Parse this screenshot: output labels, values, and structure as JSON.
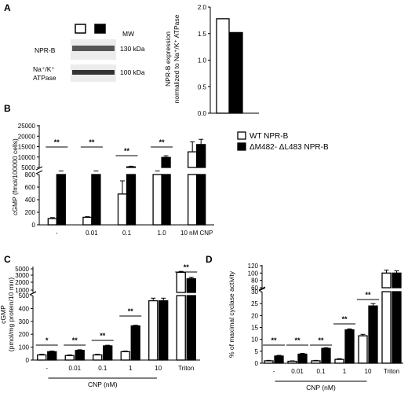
{
  "panel_letters": {
    "a": "A",
    "b": "B",
    "c": "C",
    "d": "D"
  },
  "blot": {
    "mw_label": "MW",
    "rows": [
      {
        "name": "NPR-B",
        "mw": "130 kDa"
      },
      {
        "name": "Na⁺/K⁺\nATPase",
        "mw": "100 kDa"
      }
    ],
    "lane_colors": [
      "#ffffff",
      "#000000"
    ]
  },
  "legend": {
    "entries": [
      {
        "label": "WT NPR-B",
        "color": "#ffffff"
      },
      {
        "label": "ΔM482- ΔL483 NPR-B",
        "color": "#000000"
      }
    ]
  },
  "chart_data": [
    {
      "id": "A",
      "type": "bar",
      "ylabel": "NPR-B expression\nnormalized to Na⁺/K⁺ ATPase",
      "ylim": [
        0,
        2.0
      ],
      "yticks": [
        "0.0",
        "0.5",
        "1.0",
        "1.5",
        "2.0"
      ],
      "categories": [
        "WT NPR-B",
        "ΔM482- ΔL483 NPR-B"
      ],
      "values": [
        1.78,
        1.52
      ],
      "colors": [
        "#ffffff",
        "#000000"
      ]
    },
    {
      "id": "B",
      "type": "bar",
      "ylabel": "cGMP (fmol/100000 cells)",
      "broken_axis": {
        "lower": {
          "ylim": [
            0,
            800
          ],
          "ticks": [
            "0",
            "200",
            "400",
            "600",
            "800"
          ]
        },
        "upper": {
          "ylim": [
            5000,
            25000
          ],
          "ticks": [
            "5000",
            "10000",
            "15000",
            "20000",
            "25000"
          ]
        }
      },
      "categories": [
        "-",
        "0.01",
        "0.1",
        "1.0",
        "10 nM CNP"
      ],
      "series": [
        {
          "name": "WT NPR-B",
          "color": "#ffffff",
          "values": [
            100,
            120,
            490,
            3500,
            12500
          ],
          "errors": [
            15,
            10,
            210,
            300,
            4800
          ]
        },
        {
          "name": "ΔM482- ΔL483 NPR-B",
          "color": "#000000",
          "values": [
            2500,
            3000,
            5300,
            9800,
            16000
          ],
          "errors": [
            200,
            200,
            300,
            800,
            2500
          ]
        }
      ],
      "significance": [
        "**",
        "**",
        "**",
        "**",
        ""
      ]
    },
    {
      "id": "C",
      "type": "bar",
      "ylabel": "cGMP\n(pmol/mg protein/10 min)",
      "xlabel": "CNP (nM)",
      "broken_axis": {
        "lower": {
          "ylim": [
            0,
            500
          ],
          "ticks": [
            "0",
            "100",
            "200",
            "300",
            "400",
            "500"
          ]
        },
        "upper": {
          "ylim": [
            1000,
            5000
          ],
          "ticks": [
            "1000",
            "2000",
            "3000",
            "5000"
          ]
        }
      },
      "categories": [
        "-",
        "0.01",
        "0.1",
        "1",
        "10",
        "Triton"
      ],
      "series": [
        {
          "name": "WT NPR-B",
          "color": "#ffffff",
          "values": [
            40,
            35,
            40,
            65,
            460,
            3900
          ],
          "errors": [
            5,
            5,
            5,
            5,
            20,
            300
          ]
        },
        {
          "name": "ΔM482- ΔL483 NPR-B",
          "color": "#000000",
          "values": [
            65,
            75,
            110,
            265,
            460,
            2500
          ],
          "errors": [
            5,
            5,
            5,
            5,
            20,
            200
          ]
        }
      ],
      "significance": [
        "*",
        "**",
        "**",
        "**",
        "",
        "**"
      ]
    },
    {
      "id": "D",
      "type": "bar",
      "ylabel": "% of maximal cyclase activity",
      "xlabel": "CNP (nM)",
      "broken_axis": {
        "lower": {
          "ylim": [
            0,
            30
          ],
          "ticks": [
            "0",
            "5",
            "10",
            "15",
            "20",
            "25",
            "30"
          ]
        },
        "upper": {
          "ylim": [
            60,
            120
          ],
          "ticks": [
            "60",
            "80",
            "100",
            "120"
          ]
        }
      },
      "categories": [
        "-",
        "0.01",
        "0.1",
        "1",
        "10",
        "Triton"
      ],
      "series": [
        {
          "name": "WT NPR-B",
          "color": "#ffffff",
          "values": [
            1.0,
            0.8,
            1.0,
            1.6,
            11.5,
            100
          ],
          "errors": [
            0.2,
            0.2,
            0.2,
            0.3,
            0.6,
            8
          ]
        },
        {
          "name": "ΔM482- ΔL483 NPR-B",
          "color": "#000000",
          "values": [
            3.0,
            3.8,
            6.2,
            14.0,
            24.0,
            100
          ],
          "errors": [
            0.3,
            0.3,
            0.3,
            0.4,
            1.0,
            6
          ]
        }
      ],
      "significance": [
        "**",
        "**",
        "**",
        "**",
        "**",
        ""
      ]
    }
  ]
}
